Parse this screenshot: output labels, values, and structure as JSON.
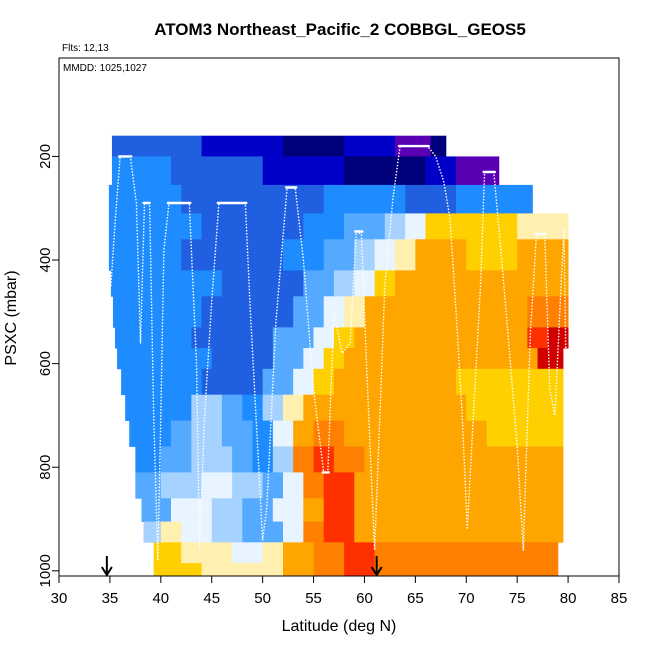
{
  "chart_data": {
    "type": "heatmap",
    "title": "ATOM3 Northeast_Pacific_2 COBBGL_GEOS5",
    "flights_label": "Flts: 12,13",
    "dates_label": "MMDD: 1025,1027",
    "xlabel": "Latitude (deg N)",
    "ylabel": "PSXC (mbar)",
    "xlim": [
      30,
      85
    ],
    "ylim": [
      1010,
      10
    ],
    "x_ticks": [
      30,
      35,
      40,
      45,
      50,
      55,
      60,
      65,
      70,
      75,
      80,
      85
    ],
    "x_tick_labels": [
      "30",
      "35",
      "40",
      "45",
      "50",
      "55",
      "60",
      "65",
      "70",
      "75",
      "80",
      "85"
    ],
    "y_ticks": [
      200,
      400,
      600,
      800,
      1000
    ],
    "y_tick_labels": [
      "200",
      "400",
      "600",
      "800",
      "1000"
    ],
    "markers": [
      34.7,
      61.2
    ],
    "colors": {
      "c0": "#5a00b4",
      "c1": "#00007a",
      "c2": "#0000c8",
      "c3": "#2060e0",
      "c4": "#1e8cff",
      "c5": "#55aaff",
      "c6": "#a6d2ff",
      "c7": "#e8f4ff",
      "c8": "#fff0b0",
      "c9": "#ffd000",
      "c10": "#ffa500",
      "c11": "#ff8000",
      "c12": "#ff3000",
      "c13": "#d00000"
    },
    "rows": [
      {
        "p": [
          160,
          200
        ],
        "segs": [
          [
            35.2,
            44,
            3
          ],
          [
            44,
            52,
            2
          ],
          [
            52,
            58,
            1
          ],
          [
            58,
            63,
            2
          ],
          [
            63,
            66.5,
            0
          ],
          [
            66.5,
            68,
            1
          ]
        ]
      },
      {
        "p": [
          200,
          255
        ],
        "segs": [
          [
            35.2,
            41,
            4
          ],
          [
            41,
            50,
            3
          ],
          [
            50,
            58,
            2
          ],
          [
            58,
            66,
            1
          ],
          [
            66,
            69,
            2
          ],
          [
            69,
            73.2,
            0
          ]
        ]
      },
      {
        "p": [
          255,
          310
        ],
        "segs": [
          [
            34.9,
            42,
            4
          ],
          [
            42,
            56,
            3
          ],
          [
            56,
            64,
            4
          ],
          [
            64,
            69,
            3
          ],
          [
            69,
            76.5,
            4
          ]
        ]
      },
      {
        "p": [
          310,
          360
        ],
        "segs": [
          [
            34.9,
            44,
            4
          ],
          [
            44,
            54,
            3
          ],
          [
            54,
            58,
            4
          ],
          [
            58,
            62,
            5
          ],
          [
            62,
            64,
            6
          ],
          [
            64,
            66,
            7
          ],
          [
            66,
            68.5,
            9
          ],
          [
            68.5,
            75,
            9
          ],
          [
            75,
            80,
            8
          ]
        ]
      },
      {
        "p": [
          360,
          420
        ],
        "segs": [
          [
            34.9,
            42,
            4
          ],
          [
            42,
            52,
            3
          ],
          [
            52,
            56,
            4
          ],
          [
            56,
            59,
            5
          ],
          [
            59,
            61,
            6
          ],
          [
            61,
            63,
            7
          ],
          [
            63,
            65,
            8
          ],
          [
            65,
            70,
            10
          ],
          [
            70,
            75,
            9
          ],
          [
            75,
            80,
            10
          ]
        ]
      },
      {
        "p": [
          420,
          470
        ],
        "segs": [
          [
            35.1,
            46,
            4
          ],
          [
            46,
            54,
            3
          ],
          [
            54,
            57,
            5
          ],
          [
            57,
            59,
            6
          ],
          [
            59,
            61,
            7
          ],
          [
            61,
            63,
            9
          ],
          [
            63,
            69,
            10
          ],
          [
            69,
            80,
            10
          ]
        ]
      },
      {
        "p": [
          470,
          530
        ],
        "segs": [
          [
            35.3,
            44,
            4
          ],
          [
            44,
            53,
            3
          ],
          [
            53,
            56,
            5
          ],
          [
            56,
            58,
            7
          ],
          [
            58,
            60,
            8
          ],
          [
            60,
            66,
            10
          ],
          [
            66,
            76,
            10
          ],
          [
            76,
            80,
            11
          ]
        ]
      },
      {
        "p": [
          530,
          570
        ],
        "segs": [
          [
            35.5,
            43,
            4
          ],
          [
            43,
            51,
            3
          ],
          [
            51,
            55,
            5
          ],
          [
            55,
            57,
            7
          ],
          [
            57,
            59,
            9
          ],
          [
            59,
            66,
            10
          ],
          [
            66,
            76,
            10
          ],
          [
            76,
            78,
            12
          ],
          [
            78,
            80,
            13
          ]
        ]
      },
      {
        "p": [
          570,
          610
        ],
        "segs": [
          [
            35.7,
            45,
            4
          ],
          [
            45,
            51,
            3
          ],
          [
            51,
            54,
            5
          ],
          [
            54,
            56,
            7
          ],
          [
            56,
            58,
            9
          ],
          [
            58,
            68,
            10
          ],
          [
            68,
            77,
            10
          ],
          [
            77,
            79.5,
            13
          ]
        ]
      },
      {
        "p": [
          610,
          660
        ],
        "segs": [
          [
            36.1,
            44,
            4
          ],
          [
            44,
            50,
            3
          ],
          [
            50,
            53,
            5
          ],
          [
            53,
            55,
            7
          ],
          [
            55,
            57,
            9
          ],
          [
            57,
            69,
            10
          ],
          [
            69,
            79.5,
            9
          ]
        ]
      },
      {
        "p": [
          660,
          710
        ],
        "segs": [
          [
            36.5,
            43,
            4
          ],
          [
            43,
            46,
            6
          ],
          [
            46,
            48,
            5
          ],
          [
            48,
            50,
            4
          ],
          [
            50,
            52,
            6
          ],
          [
            52,
            54,
            8
          ],
          [
            54,
            58,
            10
          ],
          [
            58,
            70,
            10
          ],
          [
            70,
            79.5,
            9
          ]
        ]
      },
      {
        "p": [
          710,
          760
        ],
        "segs": [
          [
            36.9,
            41,
            4
          ],
          [
            41,
            43,
            5
          ],
          [
            43,
            46,
            6
          ],
          [
            46,
            49,
            5
          ],
          [
            49,
            51,
            4
          ],
          [
            51,
            53,
            7
          ],
          [
            53,
            55,
            10
          ],
          [
            55,
            58,
            11
          ],
          [
            58,
            72,
            10
          ],
          [
            72,
            79.5,
            9
          ]
        ]
      },
      {
        "p": [
          760,
          810
        ],
        "segs": [
          [
            37.5,
            40,
            4
          ],
          [
            40,
            43,
            5
          ],
          [
            43,
            47,
            6
          ],
          [
            47,
            49,
            5
          ],
          [
            49,
            51,
            4
          ],
          [
            51,
            53,
            6
          ],
          [
            53,
            55,
            11
          ],
          [
            55,
            57,
            12
          ],
          [
            57,
            60,
            11
          ],
          [
            60,
            79.5,
            10
          ]
        ]
      },
      {
        "p": [
          810,
          860
        ],
        "segs": [
          [
            37.5,
            40,
            5
          ],
          [
            40,
            44,
            6
          ],
          [
            44,
            47,
            7
          ],
          [
            47,
            50,
            6
          ],
          [
            50,
            52,
            5
          ],
          [
            52,
            54,
            7
          ],
          [
            54,
            56,
            11
          ],
          [
            56,
            59,
            12
          ],
          [
            59,
            79.5,
            10
          ]
        ]
      },
      {
        "p": [
          860,
          905
        ],
        "segs": [
          [
            38.1,
            41,
            5
          ],
          [
            41,
            45,
            7
          ],
          [
            45,
            48,
            6
          ],
          [
            48,
            51,
            5
          ],
          [
            51,
            54,
            7
          ],
          [
            54,
            56,
            10
          ],
          [
            56,
            59,
            12
          ],
          [
            59,
            79.5,
            10
          ]
        ]
      },
      {
        "p": [
          905,
          945
        ],
        "segs": [
          [
            38.3,
            40,
            6
          ],
          [
            40,
            42,
            8
          ],
          [
            42,
            45,
            7
          ],
          [
            45,
            48,
            6
          ],
          [
            48,
            52,
            5
          ],
          [
            52,
            54,
            7
          ],
          [
            54,
            56,
            11
          ],
          [
            56,
            59,
            12
          ],
          [
            59,
            79.5,
            10
          ]
        ]
      },
      {
        "p": [
          945,
          985
        ],
        "segs": [
          [
            39.3,
            42,
            9
          ],
          [
            42,
            44,
            8
          ],
          [
            44,
            47,
            8
          ],
          [
            47,
            50,
            7
          ],
          [
            50,
            52,
            8
          ],
          [
            52,
            55,
            10
          ],
          [
            55,
            58,
            11
          ],
          [
            58,
            61,
            12
          ],
          [
            61,
            79,
            11
          ]
        ]
      },
      {
        "p": [
          985,
          1010
        ],
        "segs": [
          [
            39.3,
            44,
            9
          ],
          [
            44,
            48,
            8
          ],
          [
            48,
            52,
            8
          ],
          [
            52,
            55,
            10
          ],
          [
            55,
            58,
            11
          ],
          [
            58,
            61,
            12
          ],
          [
            61,
            79,
            11
          ]
        ]
      }
    ],
    "track": [
      [
        35.1,
        450
      ],
      [
        35.5,
        330
      ],
      [
        36,
        200
      ],
      [
        37,
        200
      ],
      [
        37.6,
        290
      ],
      [
        38,
        560
      ],
      [
        38.4,
        290
      ],
      [
        38.9,
        290
      ],
      [
        39.3,
        700
      ],
      [
        39.7,
        980
      ],
      [
        40,
        700
      ],
      [
        40.3,
        380
      ],
      [
        40.8,
        290
      ],
      [
        42.8,
        290
      ],
      [
        43.5,
        600
      ],
      [
        43.8,
        960
      ],
      [
        44.3,
        700
      ],
      [
        45,
        480
      ],
      [
        45.7,
        290
      ],
      [
        48.3,
        290
      ],
      [
        48.8,
        500
      ],
      [
        50,
        940
      ],
      [
        50.4,
        880
      ],
      [
        51.3,
        520
      ],
      [
        52.4,
        260
      ],
      [
        53.2,
        260
      ],
      [
        54,
        400
      ],
      [
        55,
        650
      ],
      [
        56,
        810
      ],
      [
        56.4,
        810
      ],
      [
        57,
        500
      ],
      [
        57.8,
        580
      ],
      [
        58.6,
        560
      ],
      [
        59.2,
        345
      ],
      [
        59.7,
        350
      ],
      [
        60.2,
        600
      ],
      [
        61,
        960
      ],
      [
        61.6,
        660
      ],
      [
        62,
        450
      ],
      [
        62.8,
        280
      ],
      [
        63.5,
        180
      ],
      [
        66.2,
        180
      ],
      [
        67,
        200
      ],
      [
        67.8,
        250
      ],
      [
        68.4,
        320
      ],
      [
        69,
        500
      ],
      [
        69.6,
        700
      ],
      [
        70.1,
        920
      ],
      [
        70.7,
        700
      ],
      [
        71.4,
        450
      ],
      [
        71.8,
        230
      ],
      [
        72.7,
        230
      ],
      [
        73.3,
        360
      ],
      [
        74,
        520
      ],
      [
        75,
        760
      ],
      [
        75.6,
        960
      ],
      [
        76.3,
        540
      ],
      [
        76.9,
        350
      ],
      [
        77.7,
        350
      ],
      [
        78.2,
        650
      ],
      [
        78.7,
        700
      ],
      [
        79.3,
        450
      ],
      [
        79.6,
        340
      ],
      [
        79.9,
        760
      ]
    ],
    "thick_segments": [
      [
        [
          35.9,
          200
        ],
        [
          37.1,
          200
        ]
      ],
      [
        [
          38.3,
          290
        ],
        [
          38.9,
          290
        ]
      ],
      [
        [
          40.7,
          290
        ],
        [
          42.9,
          290
        ]
      ],
      [
        [
          45.6,
          290
        ],
        [
          48.4,
          290
        ]
      ],
      [
        [
          52.3,
          260
        ],
        [
          53.3,
          260
        ]
      ],
      [
        [
          55.9,
          810
        ],
        [
          56.5,
          810
        ]
      ],
      [
        [
          59.1,
          345
        ],
        [
          59.8,
          345
        ]
      ],
      [
        [
          63.4,
          180
        ],
        [
          66.3,
          180
        ]
      ],
      [
        [
          71.7,
          230
        ],
        [
          72.8,
          230
        ]
      ],
      [
        [
          76.8,
          350
        ],
        [
          77.8,
          350
        ]
      ]
    ]
  }
}
